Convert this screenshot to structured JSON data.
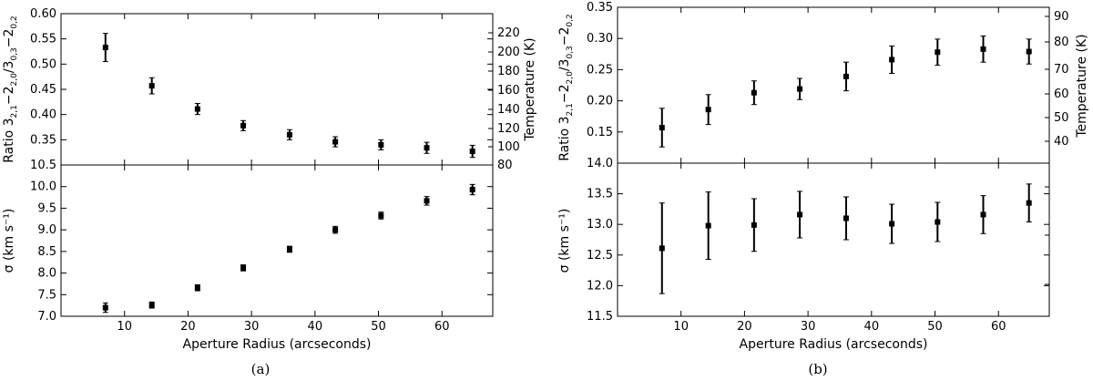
{
  "chart_data": [
    {
      "panel": "a",
      "type": "scatter",
      "caption": "(a)",
      "xlabel": "Aperture Radius (arcseconds)",
      "xlim": [
        0,
        68
      ],
      "xticks": [
        "10",
        "20",
        "30",
        "40",
        "50",
        "60"
      ],
      "top": {
        "ylabel_prefix": "Ratio ",
        "ylabel_sup1": "3",
        "ylabel_sub1": "2,1",
        "ylabel_mid1": "−2",
        "ylabel_sub2": "2,0",
        "ylabel_mid2": "/3",
        "ylabel_sub3": "0,3",
        "ylabel_mid3": "−2",
        "ylabel_sub4": "0,2",
        "ylim": [
          0.3,
          0.6
        ],
        "yticks": [
          "0.35",
          "0.40",
          "0.45",
          "0.50",
          "0.55",
          "0.60"
        ],
        "right_label": "Temperature (K)",
        "right_ticks": [
          "80",
          "100",
          "120",
          "140",
          "160",
          "180",
          "200",
          "220"
        ],
        "points": [
          {
            "x": 7,
            "y": 0.533,
            "err": 0.028
          },
          {
            "x": 14.3,
            "y": 0.457,
            "err": 0.016
          },
          {
            "x": 21.5,
            "y": 0.411,
            "err": 0.011
          },
          {
            "x": 28.7,
            "y": 0.378,
            "err": 0.01
          },
          {
            "x": 36,
            "y": 0.36,
            "err": 0.01
          },
          {
            "x": 43.2,
            "y": 0.346,
            "err": 0.01
          },
          {
            "x": 50.4,
            "y": 0.34,
            "err": 0.01
          },
          {
            "x": 57.6,
            "y": 0.334,
            "err": 0.011
          },
          {
            "x": 64.8,
            "y": 0.327,
            "err": 0.012
          }
        ]
      },
      "bottom": {
        "ylabel": "σ (km s⁻¹)",
        "ylim": [
          7.0,
          10.5
        ],
        "yticks": [
          "7.0",
          "7.5",
          "8.0",
          "8.5",
          "9.0",
          "9.5",
          "10.0",
          "10.5"
        ],
        "points": [
          {
            "x": 7,
            "y": 7.2,
            "err": 0.11
          },
          {
            "x": 14.3,
            "y": 7.26,
            "err": 0.07
          },
          {
            "x": 21.5,
            "y": 7.66,
            "err": 0.07
          },
          {
            "x": 28.7,
            "y": 8.12,
            "err": 0.07
          },
          {
            "x": 36,
            "y": 8.55,
            "err": 0.07
          },
          {
            "x": 43.2,
            "y": 9.0,
            "err": 0.08
          },
          {
            "x": 50.4,
            "y": 9.33,
            "err": 0.08
          },
          {
            "x": 57.6,
            "y": 9.67,
            "err": 0.1
          },
          {
            "x": 64.8,
            "y": 9.93,
            "err": 0.12
          }
        ]
      }
    },
    {
      "panel": "b",
      "type": "scatter",
      "caption": "(b)",
      "xlabel": "Aperture Radius (arcseconds)",
      "xlim": [
        0,
        68
      ],
      "xticks": [
        "10",
        "20",
        "30",
        "40",
        "50",
        "60"
      ],
      "top": {
        "ylabel_prefix": "Ratio ",
        "ylabel_sup1": "3",
        "ylabel_sub1": "2,1",
        "ylabel_mid1": "−2",
        "ylabel_sub2": "2,0",
        "ylabel_mid2": "/3",
        "ylabel_sub3": "0,3",
        "ylabel_mid3": "−2",
        "ylabel_sub4": "0,2",
        "ylim": [
          0.1,
          0.35
        ],
        "yticks": [
          "0.15",
          "0.20",
          "0.25",
          "0.30",
          "0.35"
        ],
        "right_label": "Temperature (K)",
        "right_ticks": [
          "40",
          "50",
          "60",
          "70",
          "80",
          "90"
        ],
        "points": [
          {
            "x": 7,
            "y": 0.157,
            "err": 0.031
          },
          {
            "x": 14.3,
            "y": 0.186,
            "err": 0.024
          },
          {
            "x": 21.5,
            "y": 0.213,
            "err": 0.019
          },
          {
            "x": 28.7,
            "y": 0.219,
            "err": 0.017
          },
          {
            "x": 36,
            "y": 0.239,
            "err": 0.023
          },
          {
            "x": 43.2,
            "y": 0.266,
            "err": 0.022
          },
          {
            "x": 50.4,
            "y": 0.278,
            "err": 0.021
          },
          {
            "x": 57.6,
            "y": 0.283,
            "err": 0.021
          },
          {
            "x": 64.8,
            "y": 0.279,
            "err": 0.02
          }
        ]
      },
      "bottom": {
        "ylabel": "σ (km s⁻¹)",
        "ylim": [
          11.5,
          14.0
        ],
        "yticks": [
          "11.5",
          "12.0",
          "12.5",
          "13.0",
          "13.5",
          "14.0"
        ],
        "points": [
          {
            "x": 7,
            "y": 12.61,
            "err": 0.74
          },
          {
            "x": 14.3,
            "y": 12.98,
            "err": 0.55
          },
          {
            "x": 21.5,
            "y": 12.99,
            "err": 0.43
          },
          {
            "x": 28.7,
            "y": 13.16,
            "err": 0.38
          },
          {
            "x": 36,
            "y": 13.1,
            "err": 0.35
          },
          {
            "x": 43.2,
            "y": 13.01,
            "err": 0.32
          },
          {
            "x": 50.4,
            "y": 13.04,
            "err": 0.32
          },
          {
            "x": 57.6,
            "y": 13.16,
            "err": 0.31
          },
          {
            "x": 64.8,
            "y": 13.35,
            "err": 0.31
          }
        ]
      }
    }
  ]
}
